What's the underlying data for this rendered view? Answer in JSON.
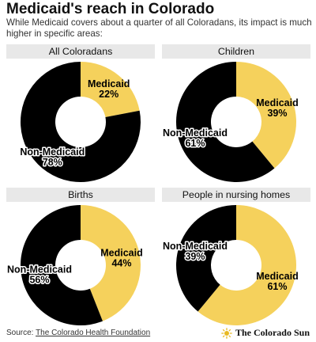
{
  "title": "Medicaid's reach in Colorado",
  "subtitle": "While Medicaid covers about a quarter of all Coloradans, its impact is much higher in specific areas:",
  "footer": {
    "source_prefix": "Source: ",
    "source_link": "The Colorado Health Foundation",
    "logo_text": "The Colorado Sun",
    "logo_icon": "sun-icon"
  },
  "colors": {
    "medicaid": "#F5D15C",
    "non_medicaid": "#000000",
    "header_bg": "#e8e8e8"
  },
  "chart_data": [
    {
      "type": "pie",
      "title": "All Coloradans",
      "categories": [
        "Medicaid",
        "Non-Medicaid"
      ],
      "values": [
        22,
        78
      ],
      "labels": [
        {
          "name": "Medicaid",
          "value": "22%"
        },
        {
          "name": "Non-Medicaid",
          "value": "78%"
        }
      ]
    },
    {
      "type": "pie",
      "title": "Children",
      "categories": [
        "Medicaid",
        "Non-Medicaid"
      ],
      "values": [
        39,
        61
      ],
      "labels": [
        {
          "name": "Medicaid",
          "value": "39%"
        },
        {
          "name": "Non-Medicaid",
          "value": "61%"
        }
      ]
    },
    {
      "type": "pie",
      "title": "Births",
      "categories": [
        "Medicaid",
        "Non-Medicaid"
      ],
      "values": [
        44,
        56
      ],
      "labels": [
        {
          "name": "Medicaid",
          "value": "44%"
        },
        {
          "name": "Non-Medicaid",
          "value": "56%"
        }
      ]
    },
    {
      "type": "pie",
      "title": "People in nursing homes",
      "categories": [
        "Medicaid",
        "Non-Medicaid"
      ],
      "values": [
        61,
        39
      ],
      "labels": [
        {
          "name": "Medicaid",
          "value": "61%"
        },
        {
          "name": "Non-Medicaid",
          "value": "39%"
        }
      ]
    }
  ]
}
